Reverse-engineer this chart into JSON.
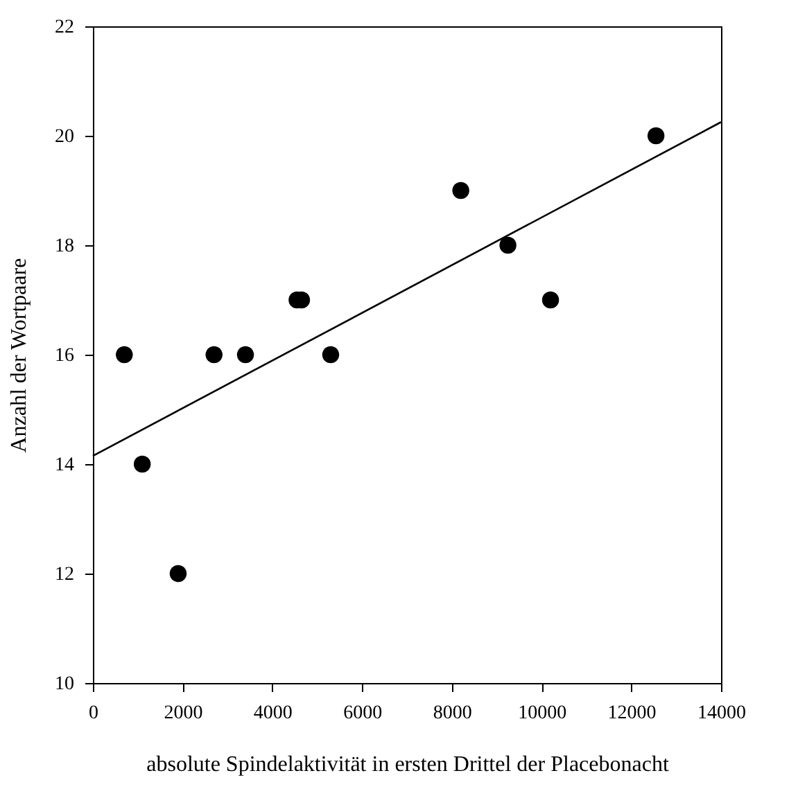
{
  "chart_data": {
    "type": "scatter",
    "xlabel": "absolute Spindelaktivität in ersten Drittel der Placebonacht",
    "ylabel": "Anzahl der Wortpaare",
    "x": [
      700,
      1100,
      1900,
      2700,
      3400,
      4550,
      4650,
      5300,
      8200,
      9250,
      10200,
      12550
    ],
    "series": [
      {
        "color": "#000000",
        "marker": "circle",
        "values": [
          16,
          14,
          12,
          16,
          16,
          17,
          17,
          16,
          19,
          18,
          17,
          20
        ]
      },
      {
        "type": "line",
        "color": "#000000",
        "marker": "none",
        "x": [
          0,
          14000
        ],
        "values": [
          14.15,
          20.25
        ]
      }
    ],
    "grid": false,
    "xlim": [
      0,
      14000
    ],
    "xticks": [
      0,
      2000,
      4000,
      6000,
      8000,
      10000,
      12000,
      14000
    ],
    "ylim": [
      10,
      22
    ],
    "yticks": [
      10,
      12,
      14,
      16,
      18,
      20,
      22
    ]
  }
}
